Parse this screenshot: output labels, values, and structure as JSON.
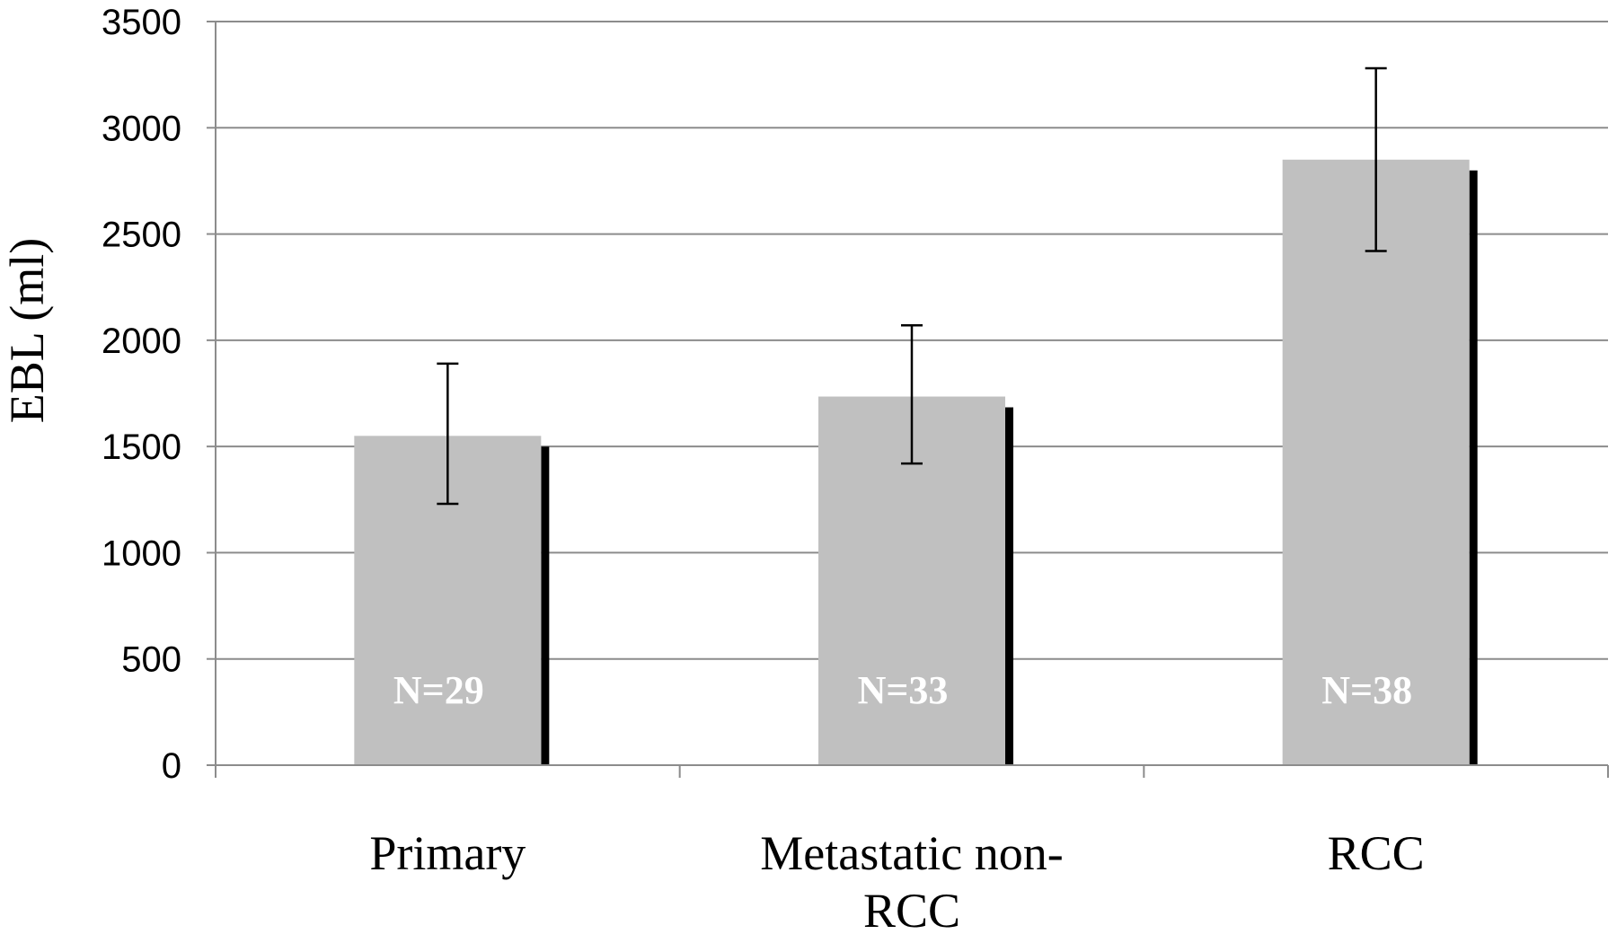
{
  "chart_data": {
    "type": "bar",
    "categories": [
      "Primary",
      "Metastatic non-RCC",
      "RCC"
    ],
    "category_lines": [
      [
        "Primary"
      ],
      [
        "Metastatic non-",
        "RCC"
      ],
      [
        "RCC"
      ]
    ],
    "values": [
      1550,
      1735,
      2850
    ],
    "error_high": [
      1890,
      2070,
      3280
    ],
    "error_low": [
      1230,
      1420,
      2420
    ],
    "annotations": [
      "N=29",
      "N=33",
      "N=38"
    ],
    "ylabel": "EBL (ml)",
    "xlabel": "",
    "ylim": [
      0,
      3500
    ],
    "yticks": [
      0,
      500,
      1000,
      1500,
      2000,
      2500,
      3000,
      3500
    ],
    "grid": true,
    "colors": {
      "bar": "#c0c0c0",
      "shadow": "#000000",
      "grid": "#8c8c8c",
      "axis": "#8c8c8c",
      "error": "#000000"
    }
  }
}
